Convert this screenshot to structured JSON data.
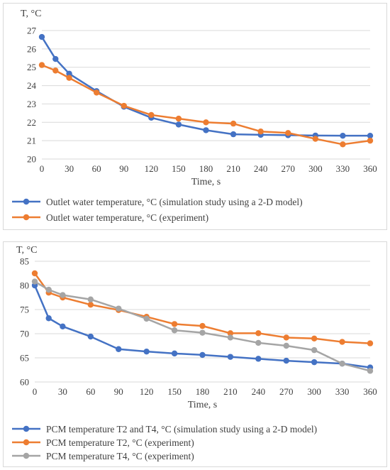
{
  "chart_data": [
    {
      "type": "line",
      "title": "",
      "ylabel": "T, °C",
      "xlabel": "Time, s",
      "x": [
        0,
        15,
        30,
        60,
        90,
        120,
        150,
        180,
        210,
        240,
        270,
        300,
        330,
        360
      ],
      "xticks": [
        0,
        30,
        60,
        90,
        120,
        150,
        180,
        210,
        240,
        270,
        300,
        330,
        360
      ],
      "ylim": [
        20,
        27
      ],
      "yticks": [
        20,
        21,
        22,
        23,
        24,
        25,
        26,
        27
      ],
      "grid": "horizontal",
      "legend": "bottom",
      "series": [
        {
          "name": "Outlet water temperature, °C (simulation study using a 2-D model)",
          "color": "#4472C4",
          "values": [
            26.65,
            25.45,
            24.65,
            23.7,
            22.85,
            22.25,
            21.88,
            21.57,
            21.35,
            21.32,
            21.3,
            21.28,
            21.27,
            21.27
          ]
        },
        {
          "name": "Outlet water temperature, °C (experiment)",
          "color": "#ED7D31",
          "values": [
            25.12,
            24.82,
            24.42,
            23.62,
            22.9,
            22.4,
            22.2,
            22.0,
            21.93,
            21.5,
            21.42,
            21.1,
            20.8,
            21.0
          ]
        }
      ]
    },
    {
      "type": "line",
      "title": "",
      "ylabel": "T, °C",
      "xlabel": "Time, s",
      "x": [
        0,
        15,
        30,
        60,
        90,
        120,
        150,
        180,
        210,
        240,
        270,
        300,
        330,
        360
      ],
      "xticks": [
        0,
        30,
        60,
        90,
        120,
        150,
        180,
        210,
        240,
        270,
        300,
        330,
        360
      ],
      "ylim": [
        60,
        85
      ],
      "yticks": [
        60,
        65,
        70,
        75,
        80,
        85
      ],
      "grid": "horizontal",
      "legend": "bottom",
      "series": [
        {
          "name": "PCM temperature T2 and T4, °C (simulation study using a 2-D model)",
          "color": "#4472C4",
          "values": [
            80.0,
            73.2,
            71.5,
            69.4,
            66.8,
            66.3,
            65.9,
            65.6,
            65.2,
            64.8,
            64.4,
            64.1,
            63.8,
            63.0
          ]
        },
        {
          "name": "PCM temperature T2, °C (experiment)",
          "color": "#ED7D31",
          "values": [
            82.5,
            78.5,
            77.5,
            76.0,
            74.9,
            73.5,
            72.0,
            71.6,
            70.1,
            70.1,
            69.2,
            69.0,
            68.3,
            68.0
          ]
        },
        {
          "name": "PCM temperature T4, °C (experiment)",
          "color": "#A5A5A5",
          "values": [
            80.8,
            79.1,
            78.0,
            77.1,
            75.2,
            73.1,
            70.7,
            70.2,
            69.2,
            68.1,
            67.5,
            66.6,
            63.8,
            62.3
          ]
        }
      ]
    }
  ]
}
